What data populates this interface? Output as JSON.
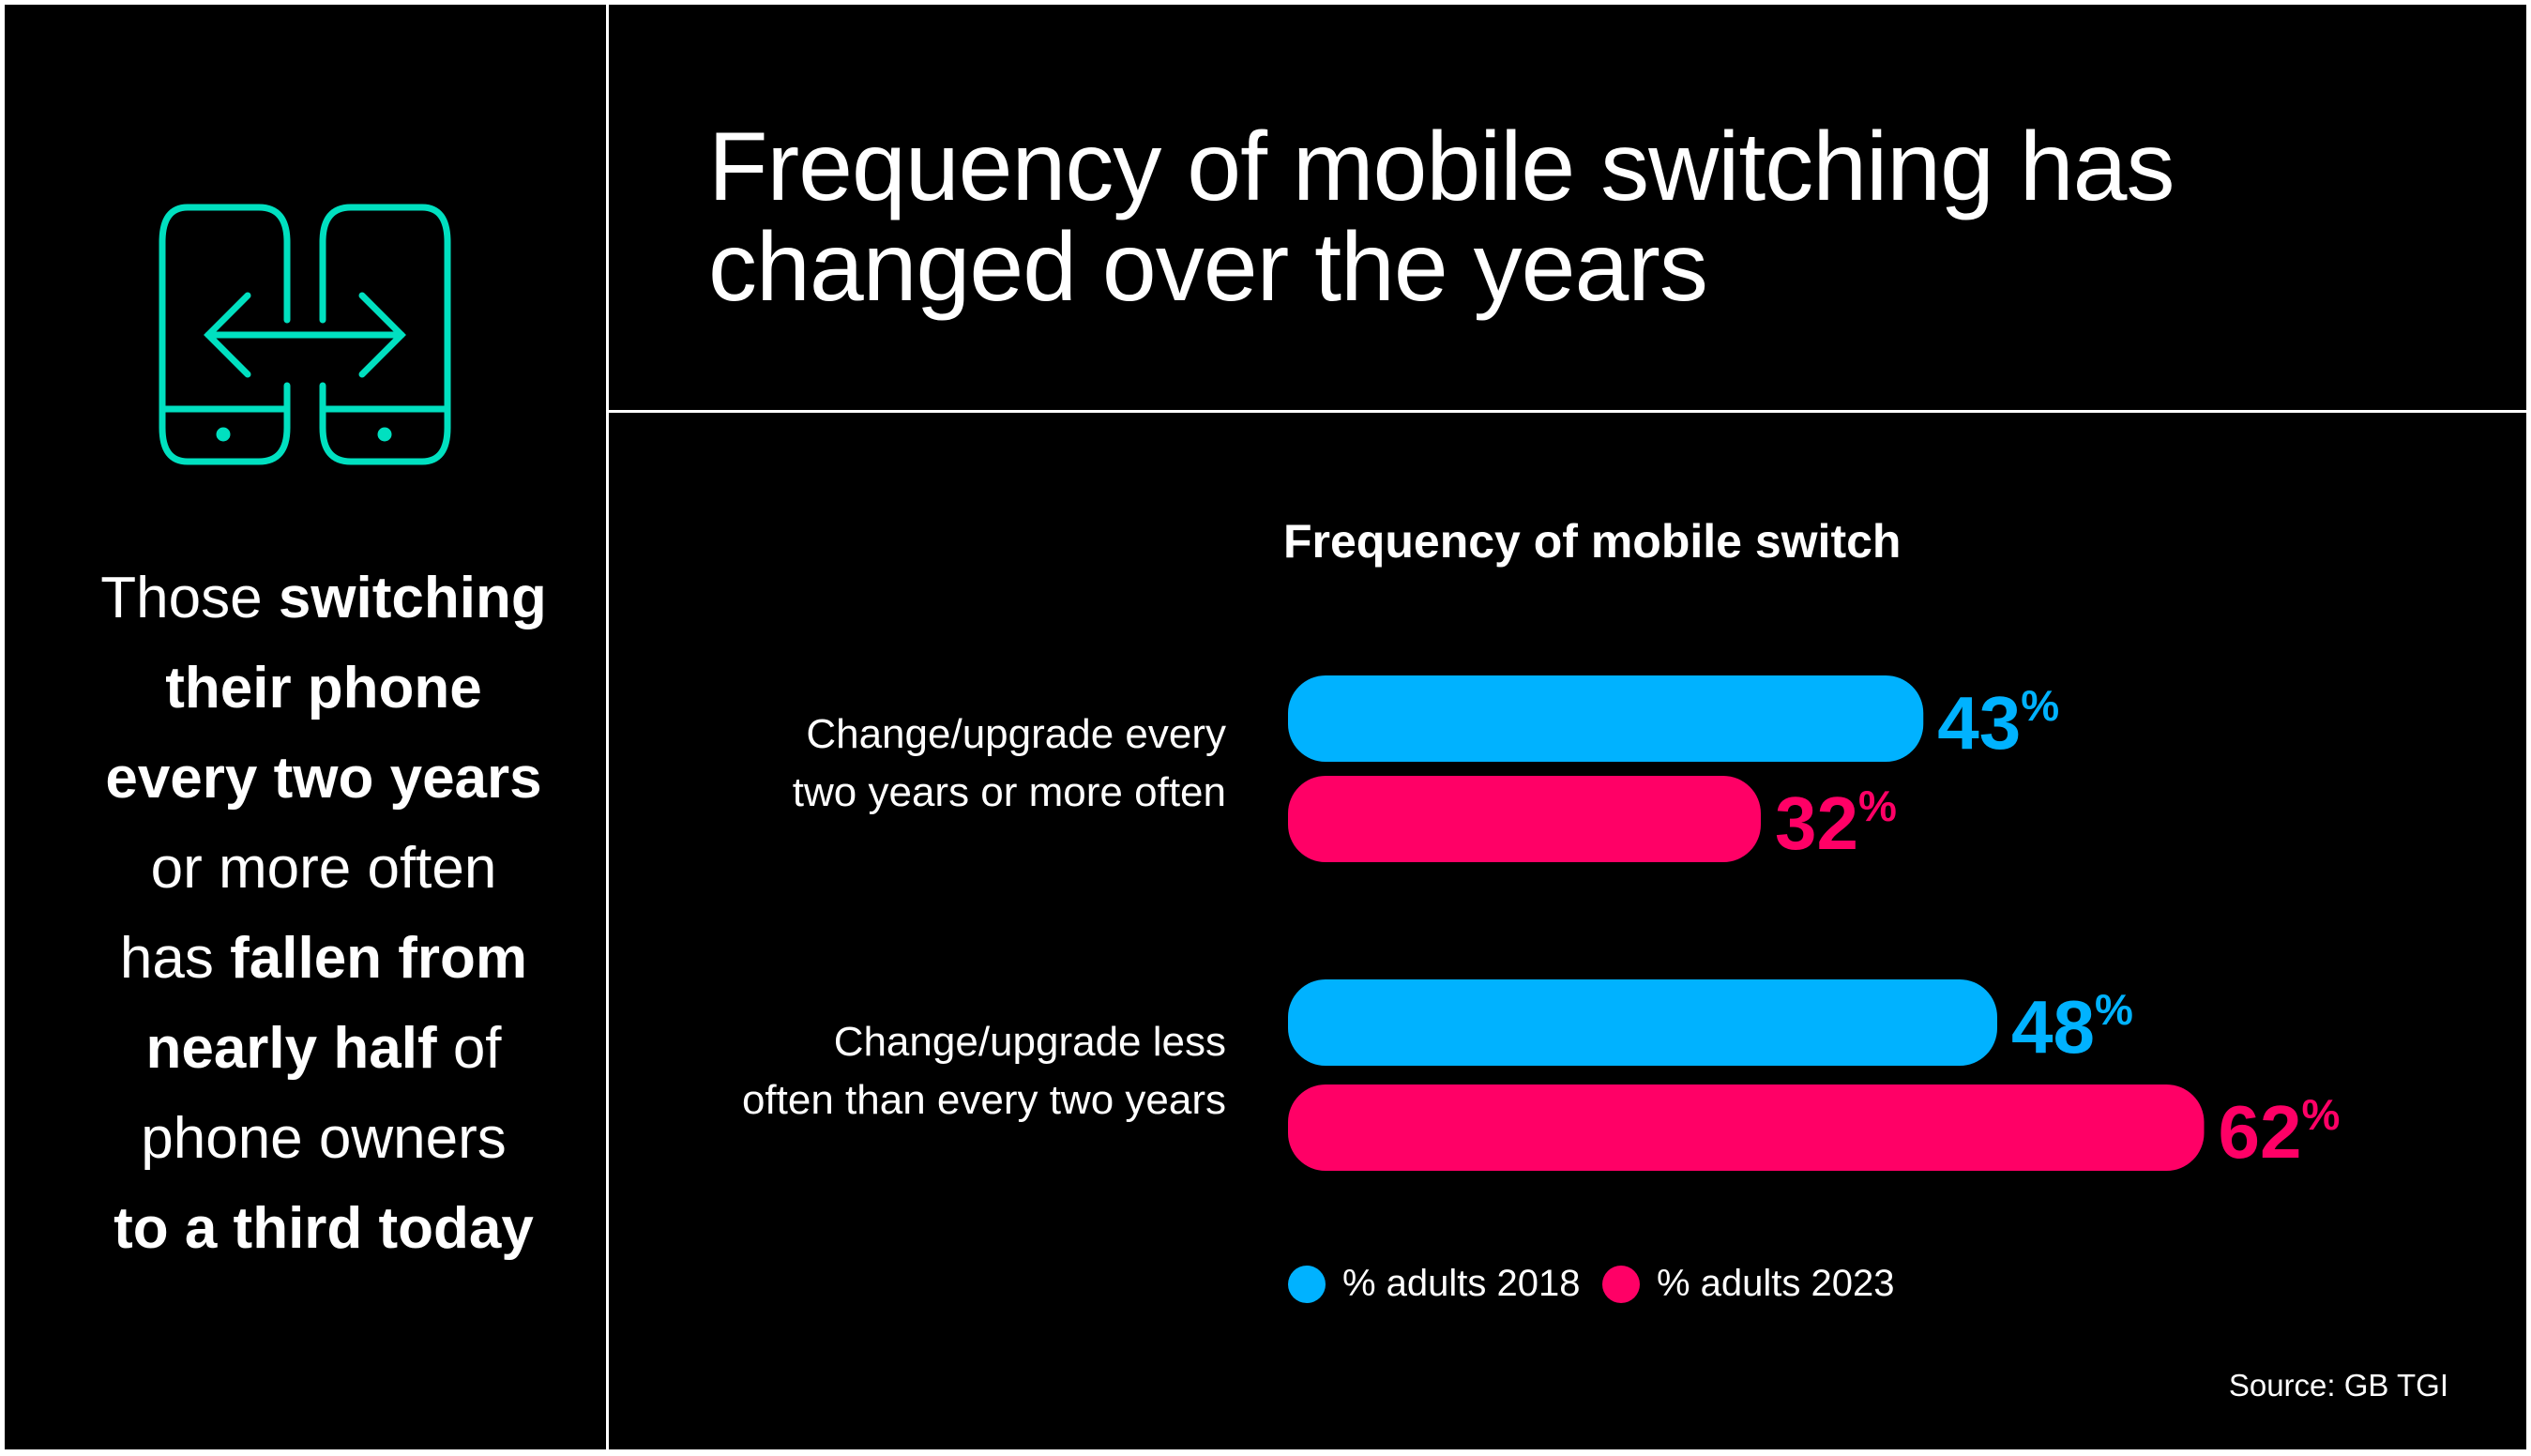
{
  "title": "Frequency of mobile switching has changed over the years",
  "title_lines": [
    "Frequency of mobile switching has",
    "changed over the years"
  ],
  "icon": "phone-switch-icon",
  "left_text": {
    "lines": [
      [
        {
          "t": "Those ",
          "b": false
        },
        {
          "t": "switching",
          "b": true
        }
      ],
      [
        {
          "t": "their phone",
          "b": true
        }
      ],
      [
        {
          "t": "every two years",
          "b": true
        }
      ],
      [
        {
          "t": "or more often",
          "b": false
        }
      ],
      [
        {
          "t": "has ",
          "b": false
        },
        {
          "t": "fallen from",
          "b": true
        }
      ],
      [
        {
          "t": "nearly half",
          "b": true
        },
        {
          "t": " of",
          "b": false
        }
      ],
      [
        {
          "t": "phone owners",
          "b": false
        }
      ],
      [
        {
          "t": "to a third today",
          "b": true
        }
      ]
    ]
  },
  "colors": {
    "accent_icon": "#00e0c0",
    "series_2018": "#00b2ff",
    "series_2023": "#ff0066"
  },
  "chart_data": {
    "type": "bar",
    "orientation": "horizontal",
    "title": "Frequency of mobile switch",
    "categories": [
      [
        "Change/upgrade every",
        "two years or more often"
      ],
      [
        "Change/upgrade less",
        "often than every two years"
      ]
    ],
    "series": [
      {
        "name": "% adults 2018",
        "values": [
          43,
          48
        ],
        "color": "#00b2ff"
      },
      {
        "name": "% adults 2023",
        "values": [
          32,
          62
        ],
        "color": "#ff0066"
      }
    ],
    "value_suffix": "%",
    "legend": "bottom-left",
    "grid": false
  },
  "source": "Source: GB TGI"
}
